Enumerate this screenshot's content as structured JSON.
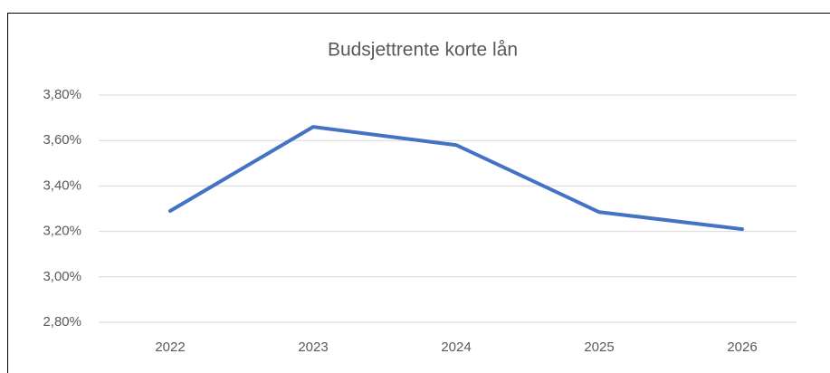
{
  "chart_data": {
    "type": "line",
    "title": "Budsjettrente korte lån",
    "categories": [
      "2022",
      "2023",
      "2024",
      "2025",
      "2026"
    ],
    "values": [
      3.29,
      3.66,
      3.58,
      3.285,
      3.21
    ],
    "color": "#4472c4",
    "ylim": [
      2.8,
      3.8
    ],
    "yticks": [
      {
        "value": 2.8,
        "label": "2,80%"
      },
      {
        "value": 3.0,
        "label": "3,00%"
      },
      {
        "value": 3.2,
        "label": "3,20%"
      },
      {
        "value": 3.4,
        "label": "3,40%"
      },
      {
        "value": 3.6,
        "label": "3,60%"
      },
      {
        "value": 3.8,
        "label": "3,80%"
      }
    ],
    "grid": true
  }
}
